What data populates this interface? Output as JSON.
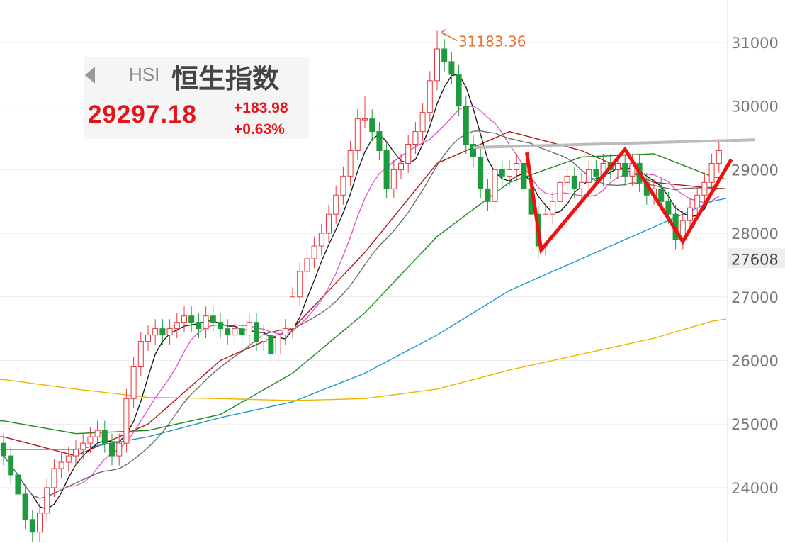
{
  "header": {
    "code": "HSI",
    "name": "恒生指数",
    "price": "29297.18",
    "change": "+183.98",
    "change_pct": "+0.63%",
    "back_icon": "triangle-left-icon"
  },
  "chart_data": {
    "type": "candlestick",
    "ylim": [
      23100,
      31200
    ],
    "y_ticks": [
      31000,
      30000,
      29000,
      28000,
      27000,
      26000,
      25000,
      24000
    ],
    "grid": true,
    "highlight_tick": "27608",
    "peak_label": "31183.36",
    "colors": {
      "up": "#e8383d",
      "down": "#1e9b3c",
      "ma5": "#111111",
      "ma10": "#e050c8",
      "ma20": "#666666",
      "ma30": "#b01818",
      "ma60": "#1b8a1b",
      "ma120": "#1a9ad0",
      "ma250": "#f0b400",
      "annotation": "#ee1111",
      "resistance": "#bbbbbb"
    },
    "open": [
      24700,
      24500,
      24200,
      23900,
      23500,
      23300,
      23600,
      24000,
      24300,
      24400,
      24500,
      24600,
      24700,
      24800,
      24900,
      24700,
      24500,
      24700,
      25400,
      25900,
      26300,
      26400,
      26500,
      26400,
      26500,
      26600,
      26700,
      26600,
      26500,
      26700,
      26600,
      26500,
      26400,
      26500,
      26400,
      26600,
      26300,
      26400,
      26100,
      26400,
      26500,
      27000,
      27400,
      27600,
      27800,
      28000,
      28300,
      28600,
      28900,
      29300,
      29800,
      29800,
      29600,
      29300,
      28700,
      29000,
      29100,
      29400,
      29600,
      29900,
      30400,
      30900,
      30700,
      30500,
      30000,
      29400,
      29200,
      28700,
      28500,
      29000,
      28900,
      29000,
      29100,
      28700,
      28300,
      27800,
      28300,
      28500,
      28800,
      28900,
      28700,
      28800,
      29000,
      28900,
      29100,
      29000,
      29100,
      28900,
      29100,
      28800,
      28600,
      28700,
      28500,
      28300,
      27900,
      28200,
      28400,
      28600,
      28800,
      29100
    ],
    "high": [
      24850,
      24650,
      24350,
      24050,
      23650,
      23750,
      24150,
      24450,
      24550,
      24650,
      24750,
      24850,
      24950,
      25050,
      25050,
      24850,
      24850,
      25550,
      26050,
      26450,
      26550,
      26650,
      26650,
      26650,
      26750,
      26850,
      26850,
      26750,
      26850,
      26850,
      26750,
      26650,
      26650,
      26650,
      26750,
      26750,
      26550,
      26550,
      26550,
      26650,
      27150,
      27550,
      27750,
      27950,
      28150,
      28450,
      28750,
      29050,
      29450,
      29950,
      30150,
      29950,
      29750,
      29450,
      29150,
      29250,
      29550,
      29750,
      30050,
      30550,
      31183.36,
      31050,
      30850,
      30650,
      30150,
      29550,
      29350,
      28850,
      29150,
      29150,
      29150,
      29250,
      29250,
      28850,
      28450,
      28450,
      28650,
      28950,
      29050,
      29050,
      28950,
      29150,
      29150,
      29250,
      29250,
      29250,
      29250,
      29250,
      29250,
      28950,
      28850,
      28850,
      28650,
      28450,
      28350,
      28550,
      28750,
      28950,
      29250,
      29450
    ],
    "low": [
      24350,
      24050,
      23750,
      23350,
      23150,
      23150,
      23450,
      23850,
      24150,
      24250,
      24350,
      24450,
      24550,
      24650,
      24550,
      24350,
      24350,
      24550,
      25250,
      25750,
      26150,
      26250,
      26250,
      26250,
      26350,
      26450,
      26450,
      26350,
      26350,
      26450,
      26350,
      26250,
      26250,
      26250,
      26250,
      26150,
      26150,
      25950,
      25950,
      26250,
      26350,
      26850,
      27250,
      27450,
      27650,
      27850,
      28150,
      28450,
      28750,
      29150,
      29650,
      29450,
      29150,
      28550,
      28550,
      28850,
      28950,
      29250,
      29450,
      29750,
      30250,
      30550,
      30350,
      29850,
      29250,
      29050,
      28550,
      28350,
      28350,
      28750,
      28750,
      28850,
      28550,
      28150,
      27608,
      27650,
      28150,
      28350,
      28650,
      28550,
      28550,
      28650,
      28750,
      28750,
      28850,
      28850,
      28750,
      28750,
      28650,
      28450,
      28450,
      28350,
      28150,
      27750,
      27750,
      28050,
      28250,
      28450,
      28650,
      28950
    ],
    "close": [
      24500,
      24200,
      23900,
      23500,
      23300,
      23600,
      24000,
      24300,
      24400,
      24500,
      24600,
      24700,
      24800,
      24900,
      24700,
      24500,
      24700,
      25400,
      25900,
      26300,
      26400,
      26500,
      26400,
      26500,
      26600,
      26700,
      26600,
      26500,
      26700,
      26600,
      26500,
      26400,
      26500,
      26400,
      26600,
      26300,
      26400,
      26100,
      26400,
      26500,
      27000,
      27400,
      27600,
      27800,
      28000,
      28300,
      28600,
      28900,
      29300,
      29800,
      29800,
      29600,
      29300,
      28700,
      29000,
      29100,
      29400,
      29600,
      29900,
      30400,
      30900,
      30700,
      30500,
      30000,
      29400,
      29200,
      28700,
      28500,
      29000,
      28900,
      29000,
      29100,
      28700,
      28300,
      27800,
      28300,
      28500,
      28800,
      28900,
      28700,
      28800,
      29000,
      28900,
      29100,
      29000,
      29100,
      28900,
      29100,
      28800,
      28600,
      28700,
      28500,
      28300,
      27900,
      28200,
      28400,
      28600,
      28800,
      29100,
      29300
    ],
    "computed_ma": [
      {
        "period": 5,
        "color_key": "ma5"
      },
      {
        "period": 10,
        "color_key": "ma10"
      },
      {
        "period": 20,
        "color_key": "ma20"
      }
    ],
    "ma_lines": [
      {
        "color_key": "ma30",
        "at_index": [
          0,
          10,
          20,
          30,
          40,
          50,
          60,
          70,
          80,
          90,
          99
        ],
        "values": [
          24800,
          24500,
          25000,
          26000,
          26500,
          27700,
          29100,
          29600,
          29300,
          28800,
          28700
        ]
      },
      {
        "color_key": "ma60",
        "at_index": [
          0,
          10,
          20,
          30,
          40,
          50,
          60,
          70,
          80,
          90,
          99
        ],
        "values": [
          25050,
          24850,
          24900,
          25150,
          25800,
          26750,
          27950,
          28800,
          29200,
          29250,
          28850
        ]
      },
      {
        "color_key": "ma120",
        "at_index": [
          0,
          10,
          20,
          30,
          40,
          50,
          60,
          70,
          80,
          90,
          99
        ],
        "values": [
          24600,
          24600,
          24800,
          25100,
          25350,
          25800,
          26400,
          27100,
          27600,
          28100,
          28550
        ]
      },
      {
        "color_key": "ma250",
        "at_index": [
          0,
          10,
          20,
          30,
          40,
          50,
          60,
          70,
          80,
          90,
          99
        ],
        "values": [
          25700,
          25550,
          25420,
          25400,
          25370,
          25400,
          25550,
          25850,
          26100,
          26350,
          26650
        ]
      }
    ],
    "annotations": {
      "w_pattern": {
        "at_index": [
          72.4,
          74.4,
          86,
          94,
          100.7
        ],
        "values": [
          29270,
          27740,
          29320,
          27870,
          29160
        ]
      },
      "resistance": {
        "at_index": [
          65,
          104
        ],
        "values": [
          29350,
          29470
        ]
      }
    }
  }
}
